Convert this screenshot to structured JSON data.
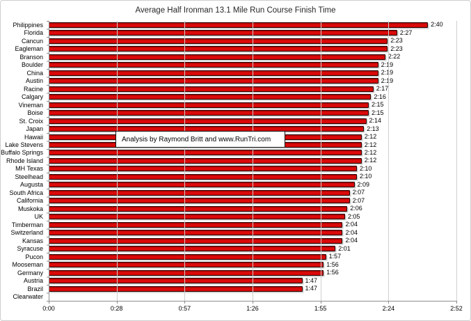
{
  "title": "Average Half Ironman 13.1 Mile Run Course Finish Time",
  "annotation": "Analysis by Raymond Britt and www.RunTri.com",
  "colors": {
    "bar_fill": "#D40A0A",
    "bar_border": "#2A0000",
    "gridline": "#CFCFCF",
    "axis": "#8C8C8C",
    "frame_border": "#CDCDCD",
    "text": "#000000"
  },
  "chart_data": {
    "type": "bar",
    "orientation": "horizontal",
    "title": "Average Half Ironman 13.1 Mile Run Course Finish Time",
    "xlabel": "",
    "ylabel": "",
    "grid": "vertical",
    "legend": "none",
    "annotation": "Analysis by Raymond Britt and www.RunTri.com",
    "x_ticks": [
      "0:00",
      "0:28",
      "0:57",
      "1:26",
      "1:55",
      "2:24",
      "2:52"
    ],
    "x_max_minutes": 172,
    "categories": [
      "Philippines",
      "Florida",
      "Cancun",
      "Eagleman",
      "Branson",
      "Boulder",
      "China",
      "Austin",
      "Racine",
      "Calgary",
      "Vineman",
      "Boise",
      "St. Croix",
      "Japan",
      "Hawaii",
      "Lake Stevens",
      "Buffalo Springs",
      "Rhode Island",
      "MH Texas",
      "Steelhead",
      "Augusta",
      "South Africa",
      "California",
      "Muskoka",
      "UK",
      "Timberman",
      "Switzerland",
      "Kansas",
      "Syracuse",
      "Pucon",
      "Mooseman",
      "Germany",
      "Austria",
      "Brazil",
      "Clearwater"
    ],
    "values": [
      "2:40",
      "2:27",
      "2:23",
      "2:23",
      "2:22",
      "2:19",
      "2:19",
      "2:19",
      "2:17",
      "2:16",
      "2:15",
      "2:15",
      "2:14",
      "2:13",
      "2:12",
      "2:12",
      "2:12",
      "2:12",
      "2:10",
      "2:10",
      "2:09",
      "2:07",
      "2:07",
      "2:06",
      "2:05",
      "2:04",
      "2:04",
      "2:04",
      "2:01",
      "1:57",
      "1:56",
      "1:56",
      "1:47",
      "1:47",
      ""
    ]
  }
}
